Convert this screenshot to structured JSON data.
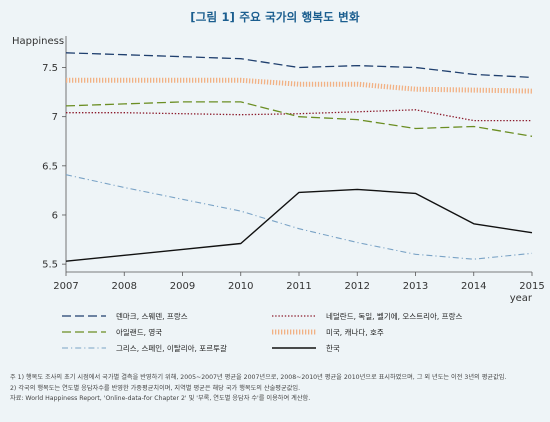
{
  "chart_data": {
    "type": "line",
    "title": "[그림 1] 주요 국가의 행복도 변화",
    "ylabel": "Happiness",
    "xlabel": "year",
    "x": [
      2007,
      2008,
      2009,
      2010,
      2011,
      2012,
      2013,
      2014,
      2015
    ],
    "ylim": [
      5.42,
      7.78
    ],
    "yticks": [
      5.5,
      6,
      6.5,
      7,
      7.5
    ],
    "ytick_labels": [
      "5.5",
      "6",
      "6.5",
      "7",
      "7.5"
    ],
    "xtick_labels": [
      "2007",
      "2008",
      "2009",
      "2010",
      "2011",
      "2012",
      "2013",
      "2014",
      "2015"
    ],
    "grid": false,
    "legend_position": "bottom",
    "series": [
      {
        "name": "덴마크, 스웨덴, 프랑스",
        "color": "#1f3f6e",
        "style": "longdash",
        "values": [
          7.65,
          7.63,
          7.61,
          7.59,
          7.5,
          7.52,
          7.5,
          7.43,
          7.4
        ]
      },
      {
        "name": "네덜란드, 독일, 벨기에, 오스트리아, 프랑스",
        "color": "#8b1a2b",
        "style": "dot",
        "values": [
          7.04,
          7.04,
          7.03,
          7.02,
          7.03,
          7.05,
          7.07,
          6.96,
          6.96
        ]
      },
      {
        "name": "아일랜드, 영국",
        "color": "#6b8e23",
        "style": "longdash",
        "values": [
          7.11,
          7.13,
          7.15,
          7.15,
          7.0,
          6.97,
          6.88,
          6.9,
          6.8
        ]
      },
      {
        "name": "미국, 캐나다, 호주",
        "color": "#f2b184",
        "style": "comb",
        "values": [
          7.37,
          7.37,
          7.37,
          7.37,
          7.33,
          7.33,
          7.28,
          7.27,
          7.26
        ]
      },
      {
        "name": "그리스, 스페인, 이탈리아, 포르투갈",
        "color": "#7aa3c6",
        "style": "dashdot",
        "values": [
          6.41,
          6.28,
          6.16,
          6.04,
          5.86,
          5.72,
          5.6,
          5.55,
          5.61
        ]
      },
      {
        "name": "한국",
        "color": "#111111",
        "style": "solid",
        "values": [
          5.53,
          5.59,
          5.65,
          5.71,
          6.23,
          6.26,
          6.22,
          5.91,
          5.82
        ]
      }
    ]
  },
  "notes": {
    "line1": "주 1)  행복도 조사의 초기 시점에서 국가별 결측을 반영하기 위해, 2005~2007년 평균을 2007년으로, 2008~2010년 평균을 2010년으로 표시하였으며, 그 외 년도는 이전 3년의 평균값임.",
    "line2": "    2) 각국의 행복도는 연도별 응답자수를 반영한 가중평균치이며, 지역별 평균은 해당 국가 행복도의 산술평균값임.",
    "line3": "자료: World Happiness Report, 'Online-data-for Chapter 2' 및 '부록, 연도별 응답자 수'를 이용하여 계산함."
  },
  "colors": {
    "background": "#eef4f7",
    "title": "#1b5e8f"
  }
}
